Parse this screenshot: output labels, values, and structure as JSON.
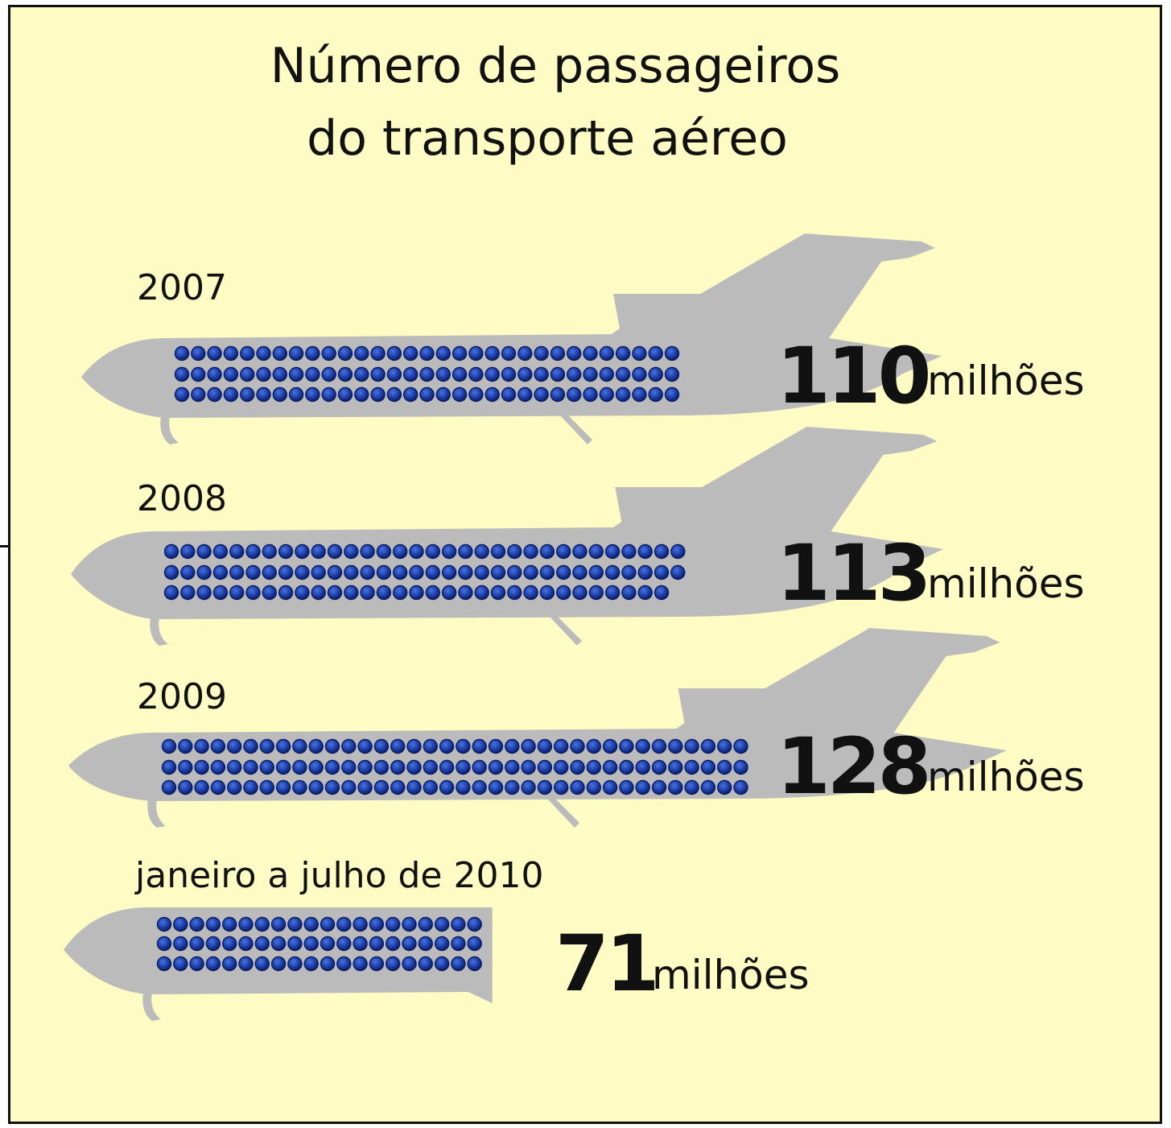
{
  "chart_data": {
    "type": "bar",
    "title": [
      "Número de passageiros",
      "do transporte aéreo"
    ],
    "categories": [
      "2007",
      "2008",
      "2009",
      "janeiro a julho de 2010"
    ],
    "values": [
      110,
      113,
      128,
      71
    ],
    "value_labels": [
      "110",
      "113",
      "128",
      "71"
    ],
    "unit": "milhões",
    "colors": {
      "background": "#fffbc4",
      "plane": "#bbbbbb",
      "seat": "#1c3fa8",
      "seat_outline": "#0b1d66",
      "text": "#111111"
    }
  }
}
